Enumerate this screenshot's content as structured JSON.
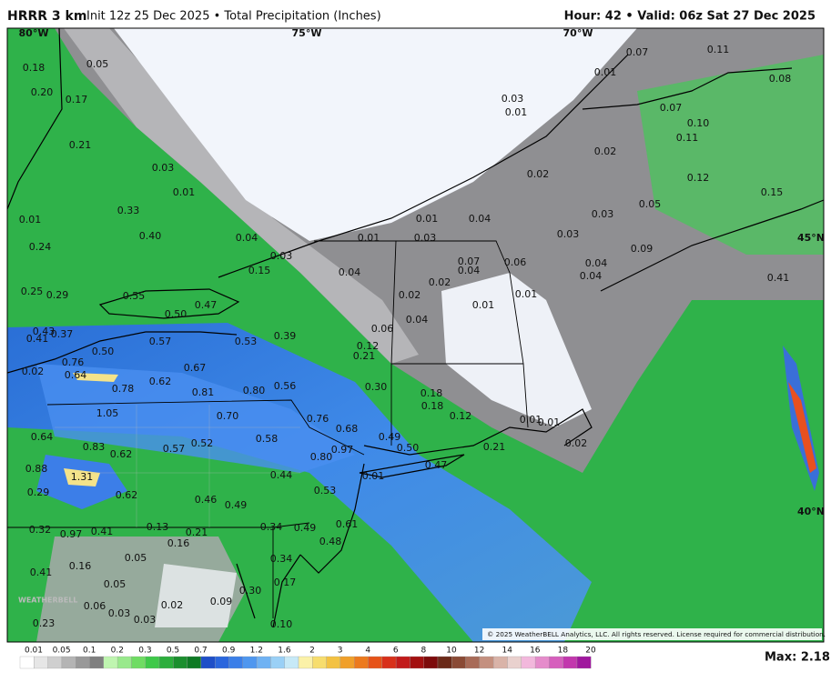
{
  "header": {
    "model": "HRRR 3 km",
    "subtitle": "Init 12z 25 Dec 2025 • Total Precipitation (Inches)",
    "valid": "Hour: 42 • Valid: 06z Sat 27 Dec 2025"
  },
  "map": {
    "grid_labels": [
      "80°W",
      "75°W",
      "70°W",
      "45°N",
      "40°N"
    ],
    "point_values": [
      "0.05",
      "0.18",
      "0.20",
      "0.17",
      "0.21",
      "0.03",
      "0.01",
      "0.33",
      "0.40",
      "0.04",
      "0.03",
      "0.15",
      "0.25",
      "0.29",
      "0.55",
      "0.50",
      "0.47",
      "0.43",
      "0.41",
      "0.37",
      "0.57",
      "0.53",
      "0.39",
      "0.50",
      "0.76",
      "0.02",
      "0.64",
      "0.62",
      "0.67",
      "0.78",
      "0.81",
      "0.80",
      "0.56",
      "1.05",
      "0.70",
      "0.76",
      "0.68",
      "0.64",
      "0.83",
      "0.62",
      "0.57",
      "0.52",
      "0.58",
      "0.97",
      "0.80",
      "0.88",
      "1.31",
      "0.44",
      "0.53",
      "0.29",
      "0.62",
      "0.46",
      "0.49",
      "0.49",
      "0.61",
      "0.48",
      "0.32",
      "0.97",
      "0.41",
      "0.13",
      "0.21",
      "0.16",
      "0.34",
      "0.34",
      "0.17",
      "0.41",
      "0.16",
      "0.05",
      "0.05",
      "0.30",
      "0.09",
      "0.06",
      "0.03",
      "0.02",
      "0.03",
      "0.23",
      "0.10",
      "0.01",
      "0.24",
      "0.07",
      "0.11",
      "0.01",
      "0.08",
      "0.03",
      "0.01",
      "0.07",
      "0.10",
      "0.11",
      "0.02",
      "0.02",
      "0.12",
      "0.15",
      "0.03",
      "0.05",
      "0.01",
      "0.04",
      "0.03",
      "0.01",
      "0.03",
      "0.09",
      "0.07",
      "0.04",
      "0.06",
      "0.04",
      "0.04",
      "0.04",
      "0.02",
      "0.02",
      "0.01",
      "0.01",
      "0.04",
      "0.06",
      "0.41",
      "0.12",
      "0.21",
      "0.30",
      "0.18",
      "0.18",
      "0.12",
      "0.49",
      "0.50",
      "0.01",
      "0.01",
      "0.21",
      "0.02",
      "0.47",
      "0.01"
    ],
    "logo": "WEATHERBELL",
    "copyright": "© 2025 WeatherBELL Analytics, LLC. All rights reserved. License required for commercial distribution."
  },
  "colorbar": {
    "labels": [
      "0.01",
      "0.05",
      "0.1",
      "0.2",
      "0.3",
      "0.5",
      "0.7",
      "0.9",
      "1.2",
      "1.6",
      "2",
      "3",
      "4",
      "6",
      "8",
      "10",
      "12",
      "14",
      "16",
      "18",
      "20"
    ]
  },
  "footer": {
    "max": "Max: 2.18"
  }
}
